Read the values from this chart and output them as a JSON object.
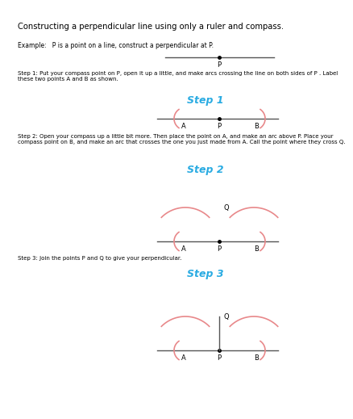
{
  "title": "Constructing a perpendicular line using only a ruler and compass.",
  "example_text": "Example:   P is a point on a line, construct a perpendicular at P.",
  "step1_label": "Step 1",
  "step1_desc": "Step 1: Put your compass point on P, open it up a little, and make arcs crossing the line on both sides of P . Label\nthese two points A and B as shown.",
  "step2_label": "Step 2",
  "step2_desc": "Step 2: Open your compass up a little bit more. Then place the point on A, and make an arc above P. Place your\ncompass point on B, and make an arc that crosses the one you just made from A. Call the point where they cross Q.",
  "step3_label": "Step 3",
  "step3_desc": "Step 3: Join the points P and Q to give your perpendicular.",
  "step_label_color": "#29ABE2",
  "arc_color": "#E8888A",
  "line_color": "#555555",
  "text_color": "#000000",
  "bg_color": "#ffffff"
}
